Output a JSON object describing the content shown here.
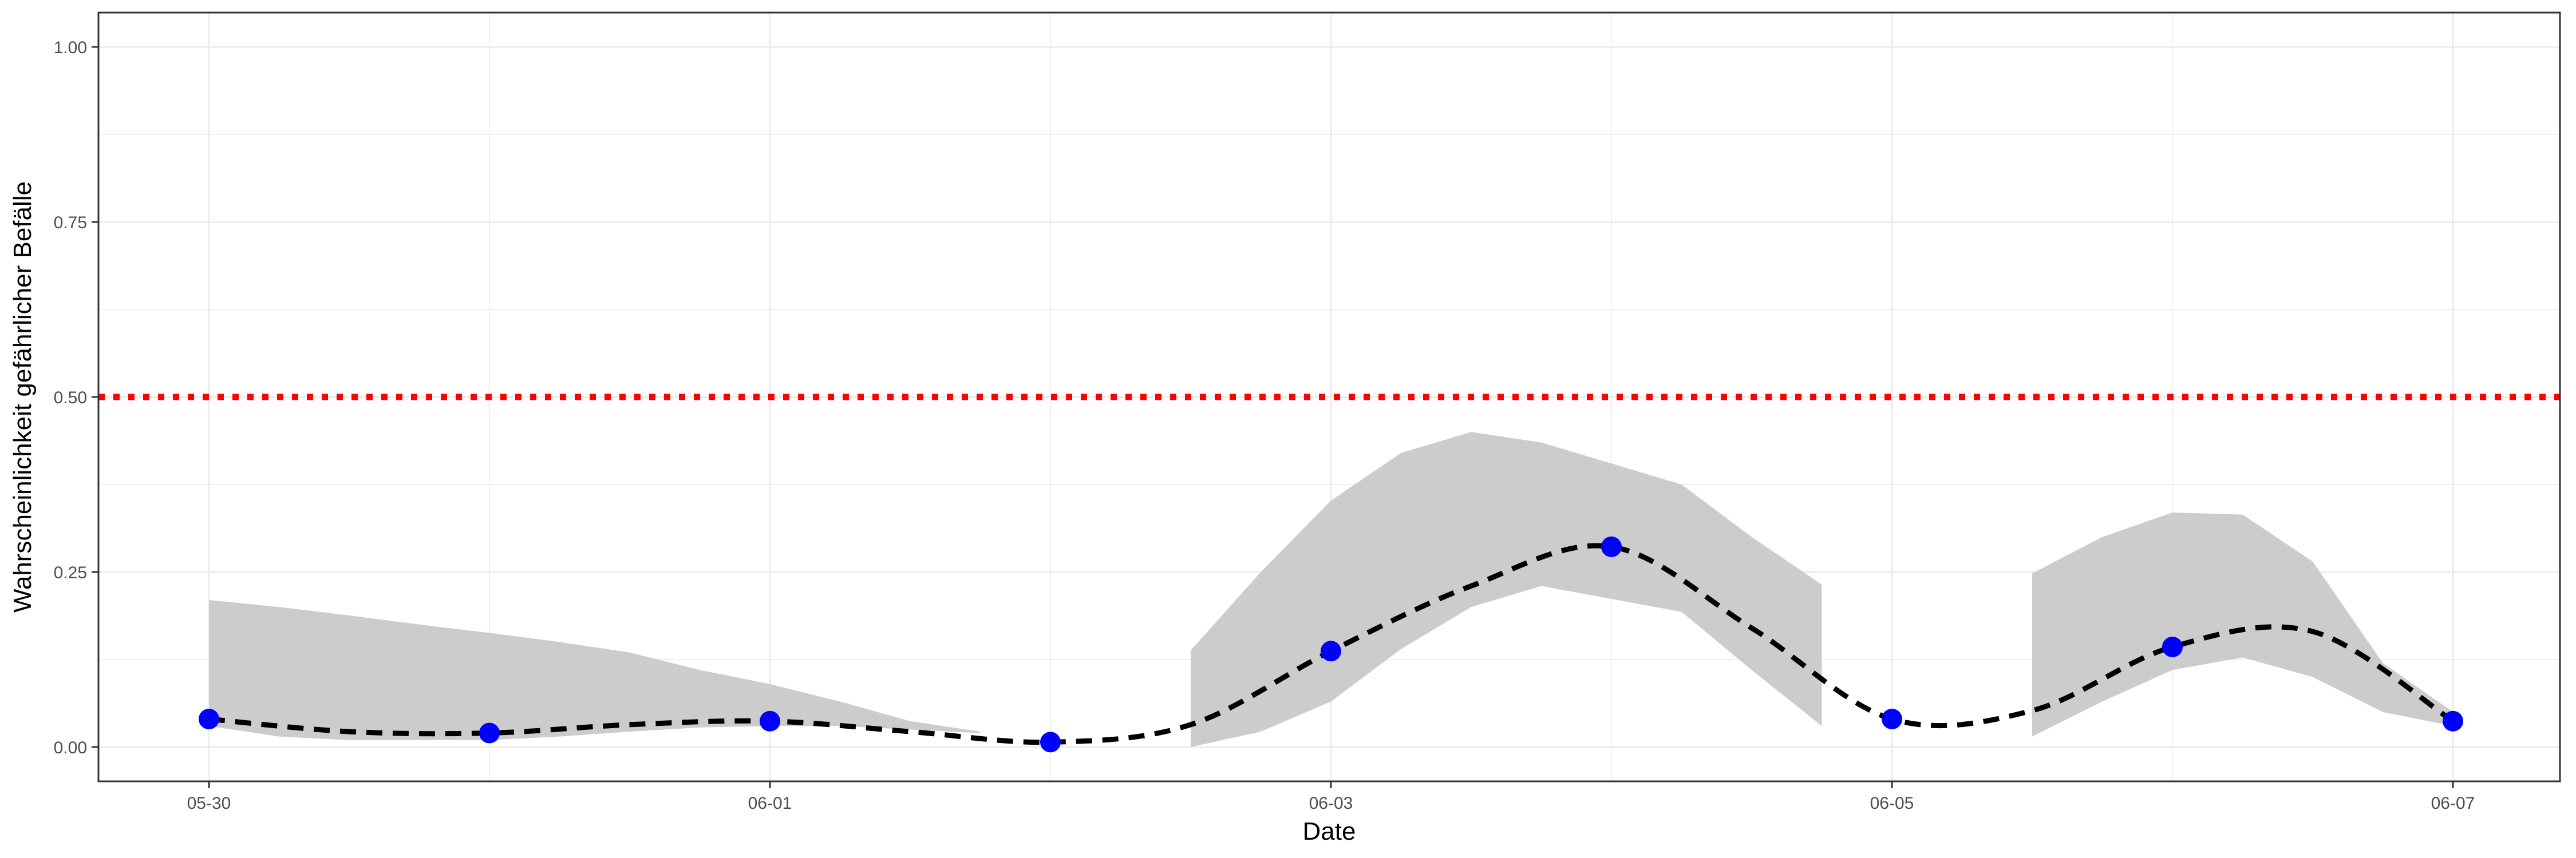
{
  "chart_data": {
    "type": "line",
    "title": "",
    "xlabel": "Date",
    "ylabel": "Wahrscheinlichkeit gefährlicher Befälle",
    "x_tick_labels": [
      "05-30",
      "06-01",
      "06-03",
      "06-05",
      "06-07"
    ],
    "y_tick_labels": [
      "0.00",
      "0.25",
      "0.50",
      "0.75",
      "1.00"
    ],
    "ylim": [
      0,
      1
    ],
    "grid": true,
    "threshold": {
      "value": 0.5,
      "color": "#ff0000",
      "style": "dotted"
    },
    "points": {
      "color": "#0000ff",
      "x": [
        "05-30",
        "05-31",
        "06-01",
        "06-02",
        "06-03",
        "06-04",
        "06-05",
        "06-06",
        "06-07"
      ],
      "y": [
        0.04,
        0.02,
        0.037,
        0.007,
        0.137,
        0.286,
        0.04,
        0.143,
        0.037
      ]
    },
    "trend_line": {
      "color": "#000000",
      "style": "dashed",
      "x": [
        "05-30",
        "05-30 12:00",
        "05-31",
        "05-31 12:00",
        "06-01",
        "06-01 12:00",
        "06-02",
        "06-02 12:00",
        "06-03",
        "06-03 12:00",
        "06-04",
        "06-04 12:00",
        "06-05",
        "06-05 12:00",
        "06-06",
        "06-06 12:00",
        "06-07"
      ],
      "y": [
        0.04,
        0.022,
        0.02,
        0.032,
        0.037,
        0.022,
        0.007,
        0.032,
        0.137,
        0.23,
        0.286,
        0.17,
        0.04,
        0.052,
        0.143,
        0.165,
        0.037
      ]
    },
    "confidence_bands": {
      "color": "#cccccc",
      "segments": [
        {
          "x": [
            "05-30",
            "05-30 06:00",
            "05-30 12:00",
            "05-30 18:00",
            "05-31",
            "05-31 06:00",
            "05-31 12:00",
            "05-31 18:00",
            "06-01",
            "06-01 06:00",
            "06-01 12:00",
            "06-01 18:00"
          ],
          "lower": [
            0.03,
            0.015,
            0.01,
            0.01,
            0.01,
            0.015,
            0.022,
            0.028,
            0.03,
            0.03,
            0.025,
            0.02
          ],
          "upper": [
            0.21,
            0.2,
            0.188,
            0.175,
            0.163,
            0.15,
            0.135,
            0.11,
            0.09,
            0.065,
            0.037,
            0.022
          ]
        },
        {
          "x": [
            "06-02 12:00",
            "06-02 18:00",
            "06-03",
            "06-03 06:00",
            "06-03 12:00",
            "06-03 18:00",
            "06-04 06:00",
            "06-04 12:00",
            "06-04 18:00"
          ],
          "lower": [
            0.0,
            0.022,
            0.065,
            0.14,
            0.2,
            0.23,
            0.193,
            0.11,
            0.03
          ],
          "upper": [
            0.138,
            0.25,
            0.352,
            0.42,
            0.45,
            0.435,
            0.375,
            0.3,
            0.232
          ]
        },
        {
          "x": [
            "06-05 12:00",
            "06-05 18:00",
            "06-06",
            "06-06 06:00",
            "06-06 12:00",
            "06-06 18:00",
            "06-07"
          ],
          "lower": [
            0.015,
            0.065,
            0.11,
            0.128,
            0.1,
            0.05,
            0.03
          ],
          "upper": [
            0.248,
            0.3,
            0.335,
            0.332,
            0.265,
            0.12,
            0.05
          ]
        }
      ]
    }
  }
}
